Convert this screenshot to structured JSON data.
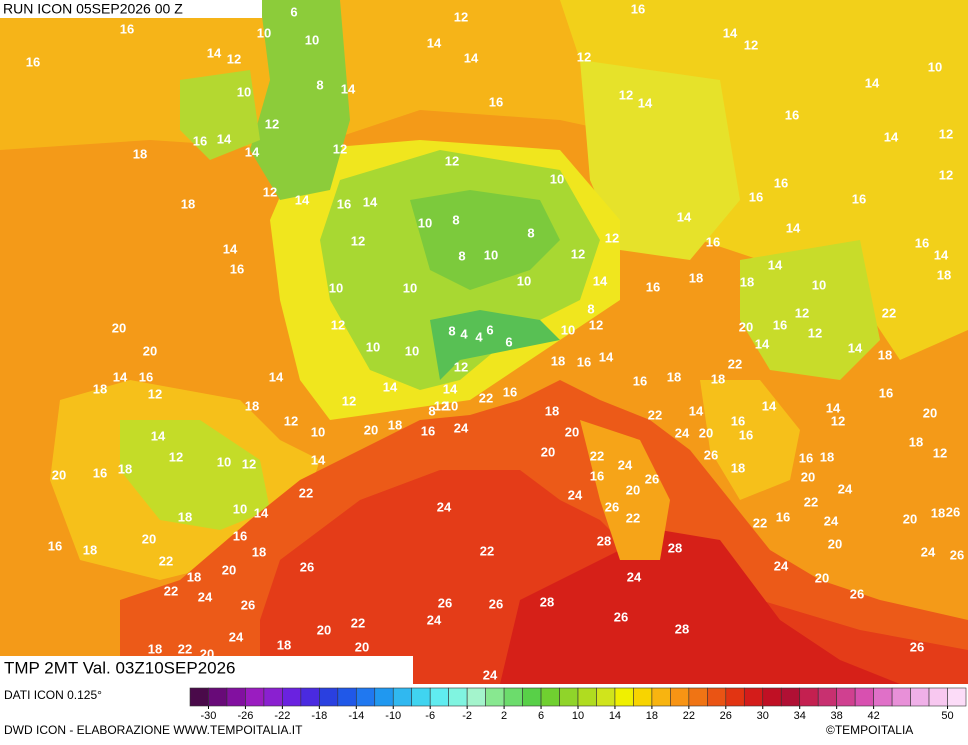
{
  "header": {
    "run": "RUN ICON 05SEP2026 00 Z"
  },
  "map_title": {
    "variable": "TMP 2MT Val. 03Z10SEP2026"
  },
  "legend": {
    "source": "DATI ICON 0.125°",
    "lim": [
      -32,
      52
    ],
    "ticks": [
      -30,
      -26,
      -22,
      -18,
      -14,
      -10,
      -6,
      -2,
      2,
      6,
      10,
      14,
      18,
      22,
      26,
      30,
      34,
      38,
      42,
      50
    ],
    "colors": [
      "#4a0a4a",
      "#680a78",
      "#8210a0",
      "#9a1cc0",
      "#8a20d0",
      "#6a22e0",
      "#4a2ae0",
      "#2a40e0",
      "#2058e8",
      "#2078f0",
      "#2098f0",
      "#30b8f0",
      "#40d4f0",
      "#60ecf0",
      "#80f4e0",
      "#a4f4cc",
      "#88e890",
      "#6cdc6c",
      "#58d048",
      "#70d030",
      "#90d42a",
      "#b0dc20",
      "#d0e41c",
      "#f0f000",
      "#f8d400",
      "#f8b410",
      "#f89414",
      "#f07414",
      "#ea5414",
      "#e23412",
      "#d41c1a",
      "#c01024",
      "#b01034",
      "#c42050",
      "#c83070",
      "#d04090",
      "#d850b0",
      "#e070c8",
      "#e890d8",
      "#f0b0e8",
      "#f8c8f0",
      "#fcdcf8"
    ]
  },
  "map_labels": [
    16,
    12,
    6,
    16,
    14,
    12,
    10,
    10,
    14,
    14,
    16,
    14,
    12,
    12,
    10,
    8,
    14,
    10,
    12,
    14,
    16,
    12,
    16,
    14,
    12,
    14,
    16,
    14,
    18,
    12,
    12,
    14,
    16,
    12,
    10,
    12,
    14,
    16,
    14,
    18,
    16,
    16,
    8,
    10,
    8,
    14,
    14,
    12,
    16,
    12,
    14,
    16,
    14,
    8,
    10,
    12,
    16,
    14,
    18,
    10,
    10,
    10,
    14,
    18,
    18,
    16,
    10,
    22,
    20,
    12,
    12,
    16,
    12,
    20,
    8,
    4,
    4,
    6,
    6,
    10,
    12,
    8,
    14,
    14,
    18,
    22,
    20,
    10,
    10,
    18,
    16,
    14,
    14,
    16,
    12,
    18,
    14,
    14,
    12,
    14,
    16,
    18,
    18,
    16,
    18,
    12,
    22,
    16,
    12,
    8,
    10,
    18,
    22,
    14,
    14,
    14,
    12,
    20,
    24,
    16,
    18,
    20,
    12,
    10,
    14,
    20,
    24,
    20,
    16,
    16,
    18,
    12,
    12,
    10,
    12,
    14,
    20,
    22,
    24,
    26,
    16,
    18,
    18,
    20,
    16,
    18,
    22,
    16,
    20,
    26,
    20,
    24,
    24,
    22,
    24,
    18,
    10,
    14,
    26,
    22,
    22,
    16,
    24,
    20,
    18,
    26,
    16,
    20,
    16,
    18,
    28,
    28,
    20,
    24,
    26,
    22,
    18,
    22,
    26,
    20,
    18,
    24,
    24,
    20,
    22,
    24,
    26,
    26,
    26,
    28,
    26,
    24,
    22,
    26,
    20,
    24,
    28,
    18,
    18,
    22,
    20,
    20,
    26,
    24
  ],
  "footer": {
    "left": "DWD ICON - ELABORAZIONE WWW.TEMPOITALIA.IT",
    "right": "©TEMPOITALIA"
  }
}
